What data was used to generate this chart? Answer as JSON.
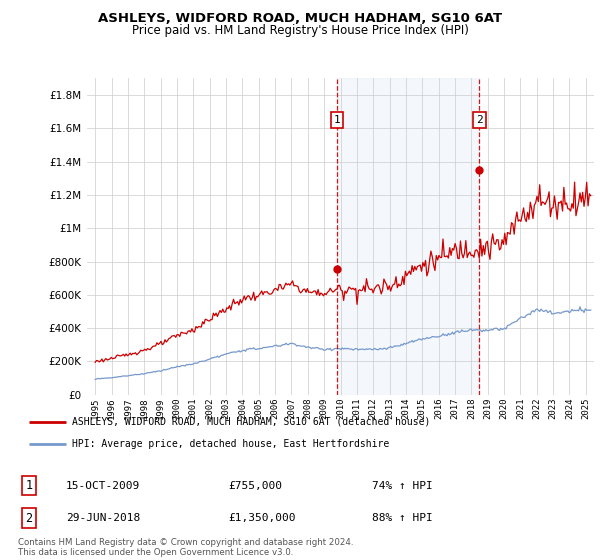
{
  "title": "ASHLEYS, WIDFORD ROAD, MUCH HADHAM, SG10 6AT",
  "subtitle": "Price paid vs. HM Land Registry's House Price Index (HPI)",
  "legend_line1": "ASHLEYS, WIDFORD ROAD, MUCH HADHAM, SG10 6AT (detached house)",
  "legend_line2": "HPI: Average price, detached house, East Hertfordshire",
  "note1_date": "15-OCT-2009",
  "note1_price": "£755,000",
  "note1_hpi": "74% ↑ HPI",
  "note2_date": "29-JUN-2018",
  "note2_price": "£1,350,000",
  "note2_hpi": "88% ↑ HPI",
  "footer": "Contains HM Land Registry data © Crown copyright and database right 2024.\nThis data is licensed under the Open Government Licence v3.0.",
  "hpi_color": "#7799cc",
  "property_color": "#cc0000",
  "vline_color": "#cc0000",
  "background_plot": "#ffffff",
  "grid_color": "#cccccc",
  "ylim": [
    0,
    1900000
  ],
  "yticks": [
    0,
    200000,
    400000,
    600000,
    800000,
    1000000,
    1200000,
    1400000,
    1600000,
    1800000
  ],
  "purchase1_x": 2009.79,
  "purchase1_y": 755000,
  "purchase2_x": 2018.49,
  "purchase2_y": 1350000,
  "xmin": 1994.5,
  "xmax": 2025.5
}
